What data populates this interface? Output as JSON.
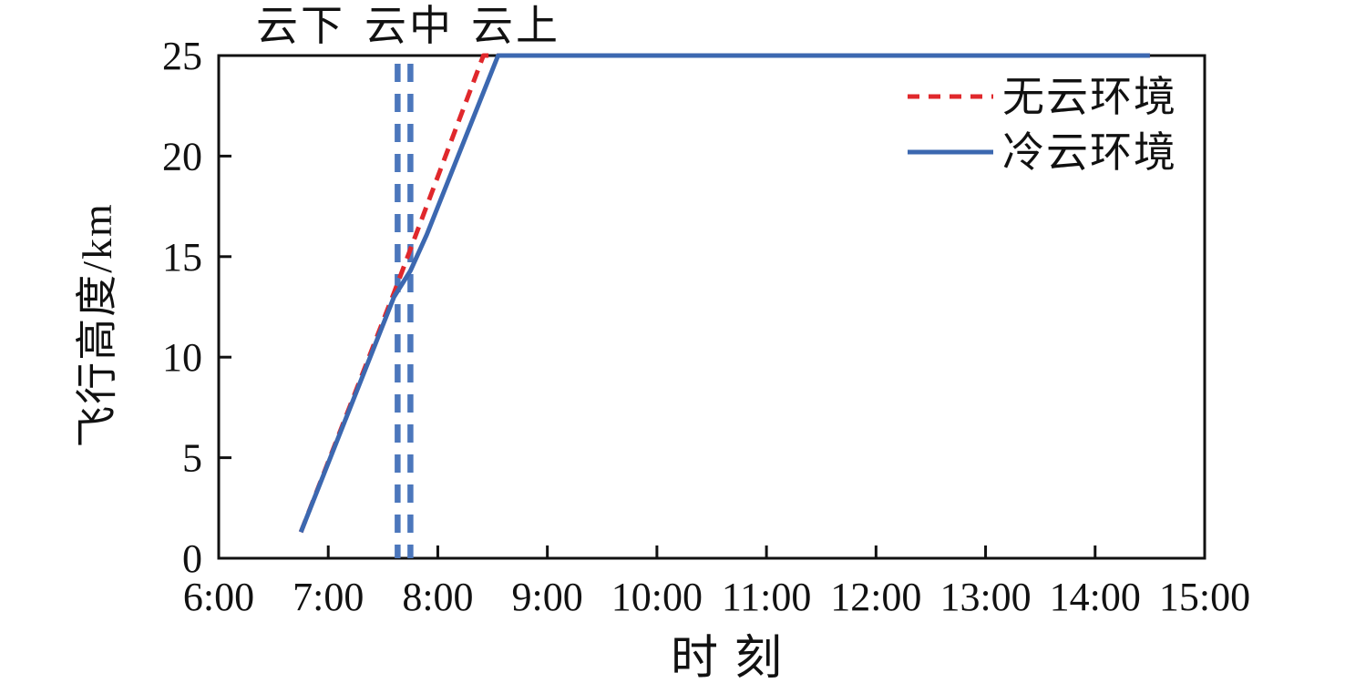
{
  "figure": {
    "background": "#ffffff",
    "axis_color": "#111111"
  },
  "axes": {
    "x_label": "时刻",
    "y_label": "飞行高度/km",
    "x_tick_labels": [
      "6:00",
      "7:00",
      "8:00",
      "9:00",
      "10:00",
      "11:00",
      "12:00",
      "13:00",
      "14:00",
      "15:00"
    ],
    "y_tick_labels": [
      "0",
      "5",
      "10",
      "15",
      "20",
      "25"
    ]
  },
  "legend": {
    "items": [
      {
        "label": "无云环境",
        "color": "#E0282C",
        "style": "dashed"
      },
      {
        "label": "冷云环境",
        "color": "#3C68B0",
        "style": "solid"
      }
    ]
  },
  "chart_data": {
    "type": "line",
    "title": "",
    "xlabel": "时刻",
    "ylabel": "飞行高度/km",
    "x_tick_labels": [
      "6:00",
      "7:00",
      "8:00",
      "9:00",
      "10:00",
      "11:00",
      "12:00",
      "13:00",
      "14:00",
      "15:00"
    ],
    "y_tick_labels": [
      "0",
      "5",
      "10",
      "15",
      "20",
      "25"
    ],
    "x_range_hours": [
      6,
      15
    ],
    "ylim": [
      0,
      25
    ],
    "grid": false,
    "legend_position": "upper-right-inside",
    "series": [
      {
        "name": "无云环境",
        "color": "#E0282C",
        "style": "dashed",
        "points": [
          [
            "6:45",
            1.3
          ],
          [
            "7:36",
            13.2
          ],
          [
            "8:25",
            25
          ],
          [
            "14:30",
            25
          ]
        ]
      },
      {
        "name": "冷云环境",
        "color": "#3C68B0",
        "style": "solid",
        "points": [
          [
            "6:45",
            1.3
          ],
          [
            "7:36",
            13.0
          ],
          [
            "7:45",
            14.3
          ],
          [
            "7:54",
            16.1
          ],
          [
            "8:33",
            25
          ],
          [
            "14:30",
            25
          ]
        ]
      }
    ],
    "annotations": {
      "region_labels": [
        "云下",
        "云中",
        "云上"
      ],
      "cloud_boundary_times": [
        "7:38",
        "7:45"
      ],
      "cloud_boundary_color": "#4C77BC",
      "cloud_boundary_altitude_km": [
        13.0,
        14.3
      ]
    }
  }
}
